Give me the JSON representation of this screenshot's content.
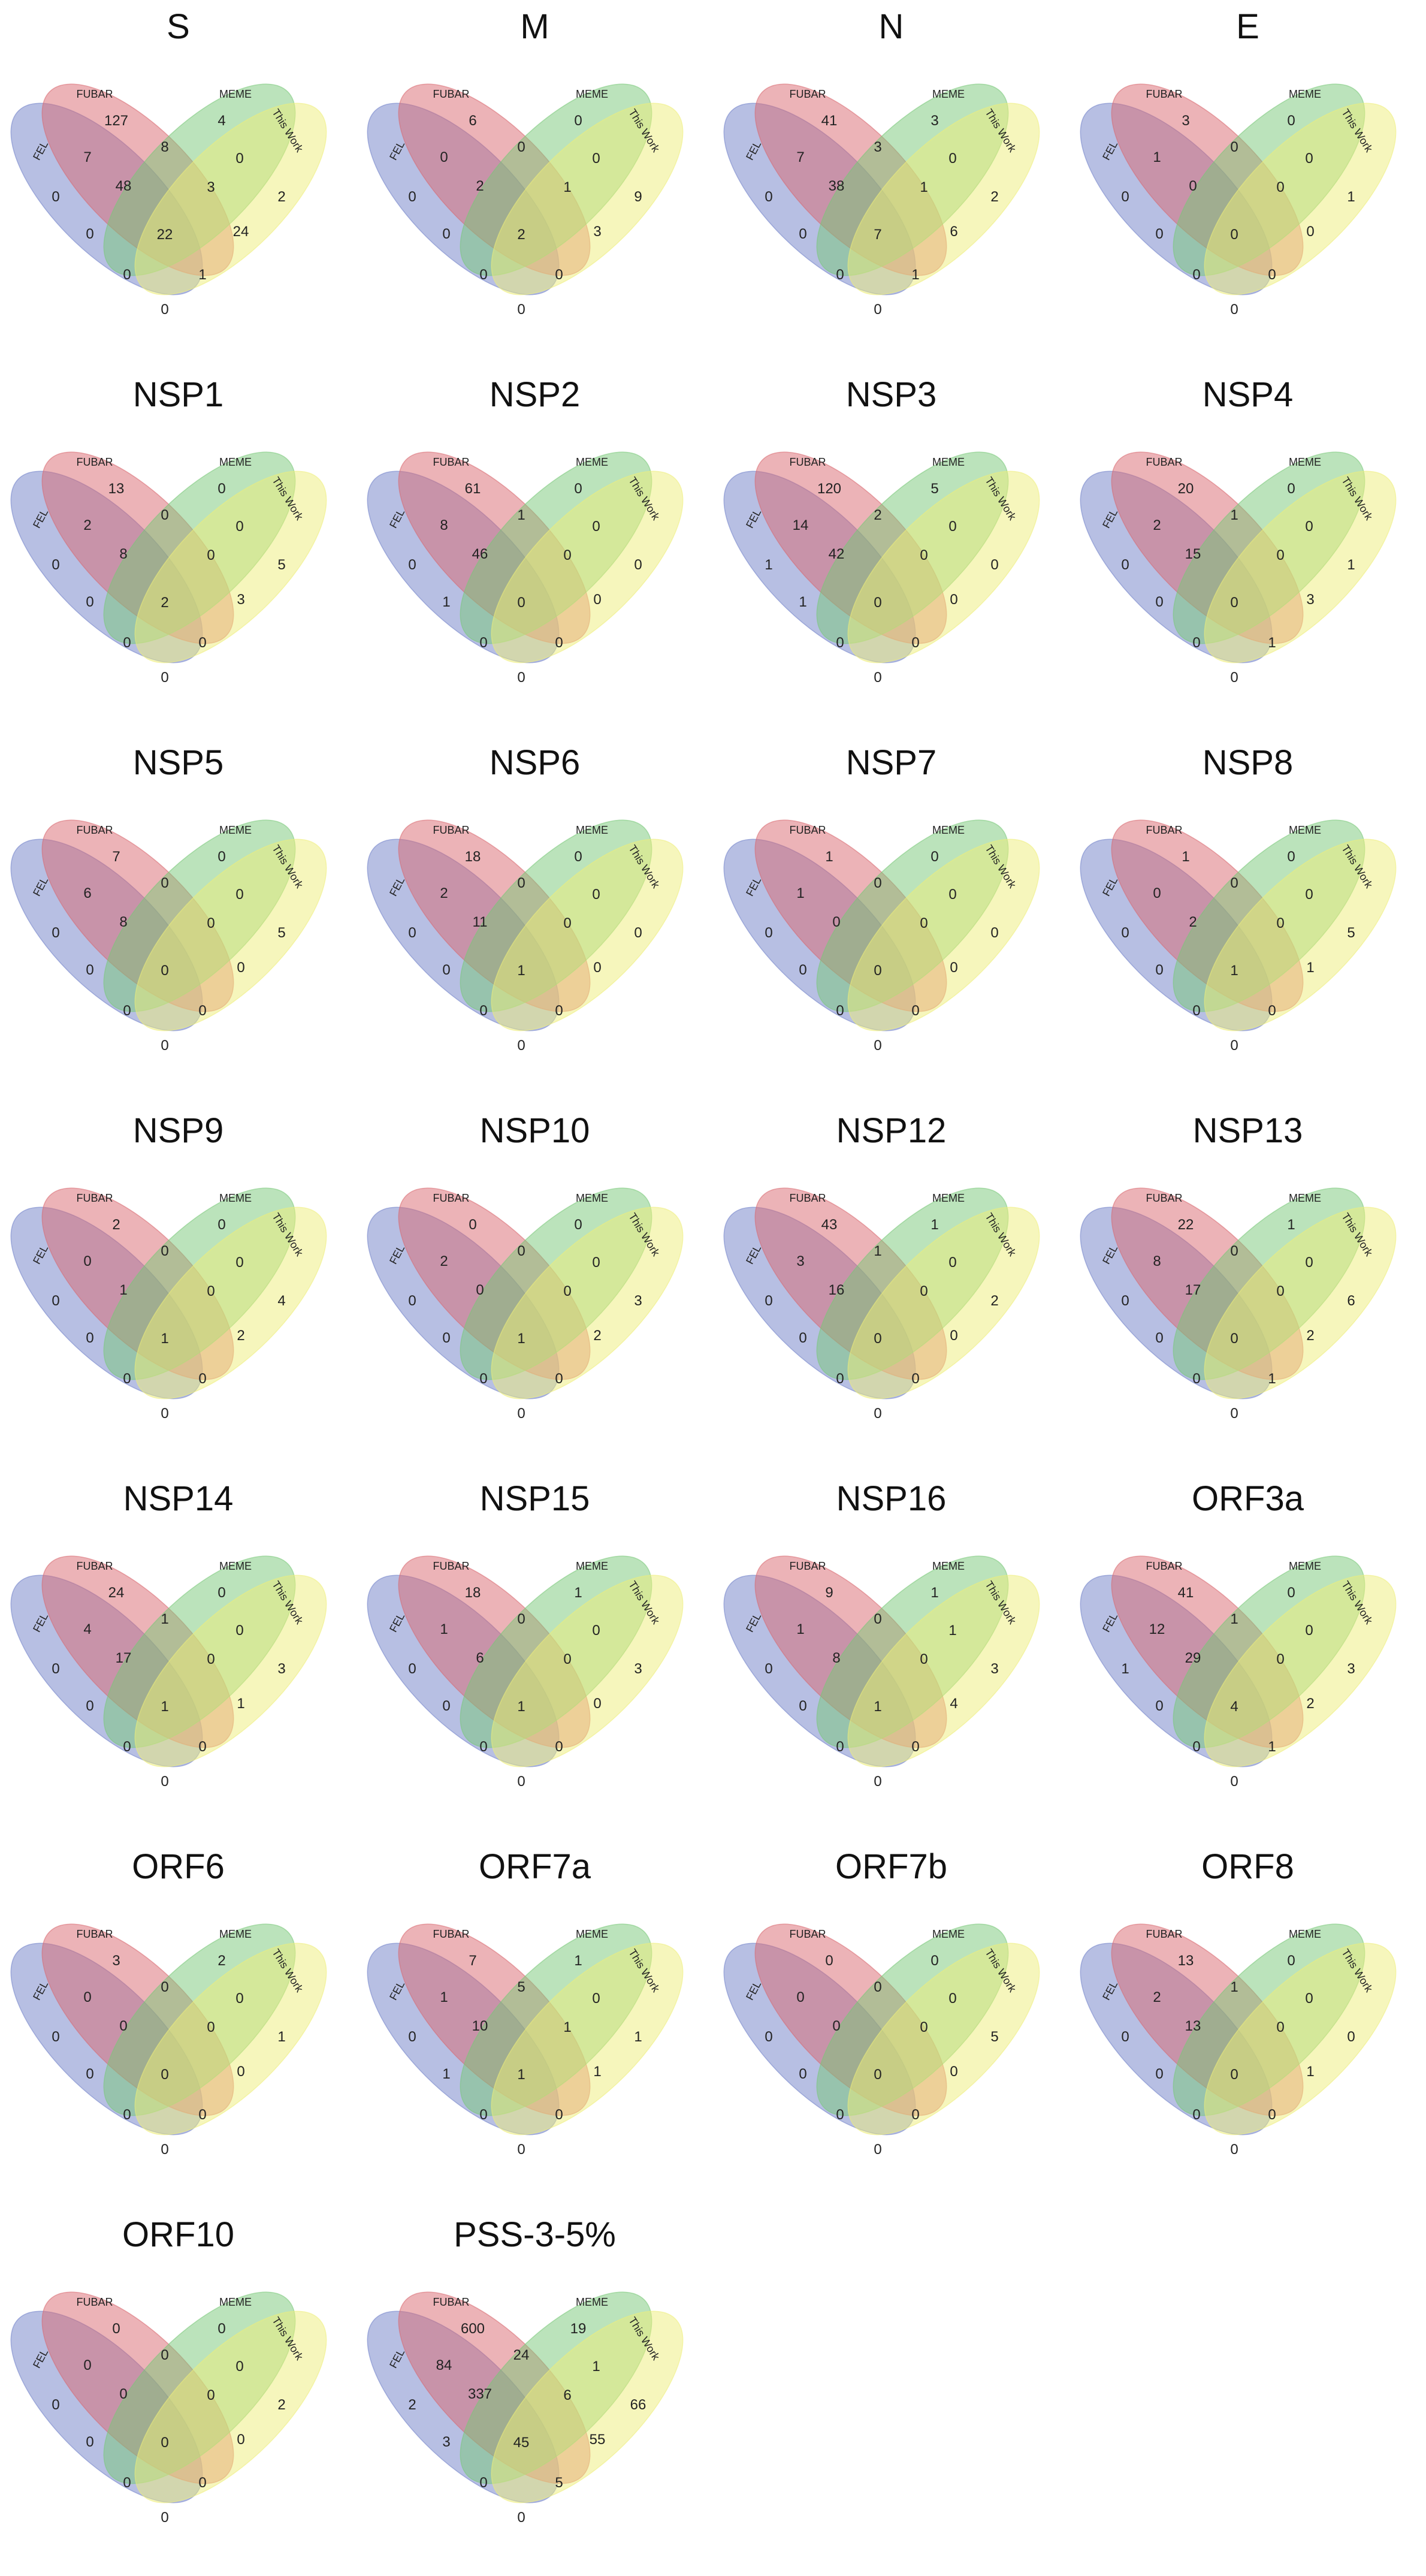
{
  "set_labels": {
    "fel": "FEL",
    "fubar": "FUBAR",
    "meme": "MEME",
    "this_work": "This Work"
  },
  "colors": {
    "fel": "#6f7fc8",
    "fubar": "#d9676f",
    "meme": "#78c878",
    "this_work": "#eeee7a"
  },
  "region_order": [
    "fubar_only",
    "meme_only",
    "fel_only",
    "this_work_only",
    "fel_fubar",
    "fubar_meme",
    "meme_this_work",
    "fel_fubar_meme",
    "fubar_meme_this_work",
    "fel_meme",
    "fel_fubar_meme_this_work",
    "fubar_this_work",
    "fel_meme_this_work",
    "fel_fubar_this_work",
    "fel_this_work"
  ],
  "panels": [
    {
      "title": "S",
      "values": {
        "fubar_only": "127",
        "meme_only": "4",
        "fel_only": "0",
        "this_work_only": "2",
        "fel_fubar": "7",
        "fubar_meme": "8",
        "meme_this_work": "0",
        "fel_fubar_meme": "48",
        "fubar_meme_this_work": "3",
        "fel_meme": "0",
        "fel_fubar_meme_this_work": "22",
        "fubar_this_work": "24",
        "fel_meme_this_work": "0",
        "fel_fubar_this_work": "1",
        "fel_this_work": "0"
      }
    },
    {
      "title": "M",
      "values": {
        "fubar_only": "6",
        "meme_only": "0",
        "fel_only": "0",
        "this_work_only": "9",
        "fel_fubar": "0",
        "fubar_meme": "0",
        "meme_this_work": "0",
        "fel_fubar_meme": "2",
        "fubar_meme_this_work": "1",
        "fel_meme": "0",
        "fel_fubar_meme_this_work": "2",
        "fubar_this_work": "3",
        "fel_meme_this_work": "0",
        "fel_fubar_this_work": "0",
        "fel_this_work": "0"
      }
    },
    {
      "title": "N",
      "values": {
        "fubar_only": "41",
        "meme_only": "3",
        "fel_only": "0",
        "this_work_only": "2",
        "fel_fubar": "7",
        "fubar_meme": "3",
        "meme_this_work": "0",
        "fel_fubar_meme": "38",
        "fubar_meme_this_work": "1",
        "fel_meme": "0",
        "fel_fubar_meme_this_work": "7",
        "fubar_this_work": "6",
        "fel_meme_this_work": "0",
        "fel_fubar_this_work": "1",
        "fel_this_work": "0"
      }
    },
    {
      "title": "E",
      "values": {
        "fubar_only": "3",
        "meme_only": "0",
        "fel_only": "0",
        "this_work_only": "1",
        "fel_fubar": "1",
        "fubar_meme": "0",
        "meme_this_work": "0",
        "fel_fubar_meme": "0",
        "fubar_meme_this_work": "0",
        "fel_meme": "0",
        "fel_fubar_meme_this_work": "0",
        "fubar_this_work": "0",
        "fel_meme_this_work": "0",
        "fel_fubar_this_work": "0",
        "fel_this_work": "0"
      }
    },
    {
      "title": "NSP1",
      "values": {
        "fubar_only": "13",
        "meme_only": "0",
        "fel_only": "0",
        "this_work_only": "5",
        "fel_fubar": "2",
        "fubar_meme": "0",
        "meme_this_work": "0",
        "fel_fubar_meme": "8",
        "fubar_meme_this_work": "0",
        "fel_meme": "0",
        "fel_fubar_meme_this_work": "2",
        "fubar_this_work": "3",
        "fel_meme_this_work": "0",
        "fel_fubar_this_work": "0",
        "fel_this_work": "0"
      }
    },
    {
      "title": "NSP2",
      "values": {
        "fubar_only": "61",
        "meme_only": "0",
        "fel_only": "0",
        "this_work_only": "0",
        "fel_fubar": "8",
        "fubar_meme": "1",
        "meme_this_work": "0",
        "fel_fubar_meme": "46",
        "fubar_meme_this_work": "0",
        "fel_meme": "1",
        "fel_fubar_meme_this_work": "0",
        "fubar_this_work": "0",
        "fel_meme_this_work": "0",
        "fel_fubar_this_work": "0",
        "fel_this_work": "0"
      }
    },
    {
      "title": "NSP3",
      "values": {
        "fubar_only": "120",
        "meme_only": "5",
        "fel_only": "1",
        "this_work_only": "0",
        "fel_fubar": "14",
        "fubar_meme": "2",
        "meme_this_work": "0",
        "fel_fubar_meme": "42",
        "fubar_meme_this_work": "0",
        "fel_meme": "1",
        "fel_fubar_meme_this_work": "0",
        "fubar_this_work": "0",
        "fel_meme_this_work": "0",
        "fel_fubar_this_work": "0",
        "fel_this_work": "0"
      }
    },
    {
      "title": "NSP4",
      "values": {
        "fubar_only": "20",
        "meme_only": "0",
        "fel_only": "0",
        "this_work_only": "1",
        "fel_fubar": "2",
        "fubar_meme": "1",
        "meme_this_work": "0",
        "fel_fubar_meme": "15",
        "fubar_meme_this_work": "0",
        "fel_meme": "0",
        "fel_fubar_meme_this_work": "0",
        "fubar_this_work": "3",
        "fel_meme_this_work": "0",
        "fel_fubar_this_work": "1",
        "fel_this_work": "0"
      }
    },
    {
      "title": "NSP5",
      "values": {
        "fubar_only": "7",
        "meme_only": "0",
        "fel_only": "0",
        "this_work_only": "5",
        "fel_fubar": "6",
        "fubar_meme": "0",
        "meme_this_work": "0",
        "fel_fubar_meme": "8",
        "fubar_meme_this_work": "0",
        "fel_meme": "0",
        "fel_fubar_meme_this_work": "0",
        "fubar_this_work": "0",
        "fel_meme_this_work": "0",
        "fel_fubar_this_work": "0",
        "fel_this_work": "0"
      }
    },
    {
      "title": "NSP6",
      "values": {
        "fubar_only": "18",
        "meme_only": "0",
        "fel_only": "0",
        "this_work_only": "0",
        "fel_fubar": "2",
        "fubar_meme": "0",
        "meme_this_work": "0",
        "fel_fubar_meme": "11",
        "fubar_meme_this_work": "0",
        "fel_meme": "0",
        "fel_fubar_meme_this_work": "1",
        "fubar_this_work": "0",
        "fel_meme_this_work": "0",
        "fel_fubar_this_work": "0",
        "fel_this_work": "0"
      }
    },
    {
      "title": "NSP7",
      "values": {
        "fubar_only": "1",
        "meme_only": "0",
        "fel_only": "0",
        "this_work_only": "0",
        "fel_fubar": "1",
        "fubar_meme": "0",
        "meme_this_work": "0",
        "fel_fubar_meme": "0",
        "fubar_meme_this_work": "0",
        "fel_meme": "0",
        "fel_fubar_meme_this_work": "0",
        "fubar_this_work": "0",
        "fel_meme_this_work": "0",
        "fel_fubar_this_work": "0",
        "fel_this_work": "0"
      }
    },
    {
      "title": "NSP8",
      "values": {
        "fubar_only": "1",
        "meme_only": "0",
        "fel_only": "0",
        "this_work_only": "5",
        "fel_fubar": "0",
        "fubar_meme": "0",
        "meme_this_work": "0",
        "fel_fubar_meme": "2",
        "fubar_meme_this_work": "0",
        "fel_meme": "0",
        "fel_fubar_meme_this_work": "1",
        "fubar_this_work": "1",
        "fel_meme_this_work": "0",
        "fel_fubar_this_work": "0",
        "fel_this_work": "0"
      }
    },
    {
      "title": "NSP9",
      "values": {
        "fubar_only": "2",
        "meme_only": "0",
        "fel_only": "0",
        "this_work_only": "4",
        "fel_fubar": "0",
        "fubar_meme": "0",
        "meme_this_work": "0",
        "fel_fubar_meme": "1",
        "fubar_meme_this_work": "0",
        "fel_meme": "0",
        "fel_fubar_meme_this_work": "1",
        "fubar_this_work": "2",
        "fel_meme_this_work": "0",
        "fel_fubar_this_work": "0",
        "fel_this_work": "0"
      }
    },
    {
      "title": "NSP10",
      "values": {
        "fubar_only": "0",
        "meme_only": "0",
        "fel_only": "0",
        "this_work_only": "3",
        "fel_fubar": "2",
        "fubar_meme": "0",
        "meme_this_work": "0",
        "fel_fubar_meme": "0",
        "fubar_meme_this_work": "0",
        "fel_meme": "0",
        "fel_fubar_meme_this_work": "1",
        "fubar_this_work": "2",
        "fel_meme_this_work": "0",
        "fel_fubar_this_work": "0",
        "fel_this_work": "0"
      }
    },
    {
      "title": "NSP12",
      "values": {
        "fubar_only": "43",
        "meme_only": "1",
        "fel_only": "0",
        "this_work_only": "2",
        "fel_fubar": "3",
        "fubar_meme": "1",
        "meme_this_work": "0",
        "fel_fubar_meme": "16",
        "fubar_meme_this_work": "0",
        "fel_meme": "0",
        "fel_fubar_meme_this_work": "0",
        "fubar_this_work": "0",
        "fel_meme_this_work": "0",
        "fel_fubar_this_work": "0",
        "fel_this_work": "0"
      }
    },
    {
      "title": "NSP13",
      "values": {
        "fubar_only": "22",
        "meme_only": "1",
        "fel_only": "0",
        "this_work_only": "6",
        "fel_fubar": "8",
        "fubar_meme": "0",
        "meme_this_work": "0",
        "fel_fubar_meme": "17",
        "fubar_meme_this_work": "0",
        "fel_meme": "0",
        "fel_fubar_meme_this_work": "0",
        "fubar_this_work": "2",
        "fel_meme_this_work": "0",
        "fel_fubar_this_work": "1",
        "fel_this_work": "0"
      }
    },
    {
      "title": "NSP14",
      "values": {
        "fubar_only": "24",
        "meme_only": "0",
        "fel_only": "0",
        "this_work_only": "3",
        "fel_fubar": "4",
        "fubar_meme": "1",
        "meme_this_work": "0",
        "fel_fubar_meme": "17",
        "fubar_meme_this_work": "0",
        "fel_meme": "0",
        "fel_fubar_meme_this_work": "1",
        "fubar_this_work": "1",
        "fel_meme_this_work": "0",
        "fel_fubar_this_work": "0",
        "fel_this_work": "0"
      }
    },
    {
      "title": "NSP15",
      "values": {
        "fubar_only": "18",
        "meme_only": "1",
        "fel_only": "0",
        "this_work_only": "3",
        "fel_fubar": "1",
        "fubar_meme": "0",
        "meme_this_work": "0",
        "fel_fubar_meme": "6",
        "fubar_meme_this_work": "0",
        "fel_meme": "0",
        "fel_fubar_meme_this_work": "1",
        "fubar_this_work": "0",
        "fel_meme_this_work": "0",
        "fel_fubar_this_work": "0",
        "fel_this_work": "0"
      }
    },
    {
      "title": "NSP16",
      "values": {
        "fubar_only": "9",
        "meme_only": "1",
        "fel_only": "0",
        "this_work_only": "3",
        "fel_fubar": "1",
        "fubar_meme": "0",
        "meme_this_work": "1",
        "fel_fubar_meme": "8",
        "fubar_meme_this_work": "0",
        "fel_meme": "0",
        "fel_fubar_meme_this_work": "1",
        "fubar_this_work": "4",
        "fel_meme_this_work": "0",
        "fel_fubar_this_work": "0",
        "fel_this_work": "0"
      }
    },
    {
      "title": "ORF3a",
      "values": {
        "fubar_only": "41",
        "meme_only": "0",
        "fel_only": "1",
        "this_work_only": "3",
        "fel_fubar": "12",
        "fubar_meme": "1",
        "meme_this_work": "0",
        "fel_fubar_meme": "29",
        "fubar_meme_this_work": "0",
        "fel_meme": "0",
        "fel_fubar_meme_this_work": "4",
        "fubar_this_work": "2",
        "fel_meme_this_work": "0",
        "fel_fubar_this_work": "1",
        "fel_this_work": "0"
      }
    },
    {
      "title": "ORF6",
      "values": {
        "fubar_only": "3",
        "meme_only": "2",
        "fel_only": "0",
        "this_work_only": "1",
        "fel_fubar": "0",
        "fubar_meme": "0",
        "meme_this_work": "0",
        "fel_fubar_meme": "0",
        "fubar_meme_this_work": "0",
        "fel_meme": "0",
        "fel_fubar_meme_this_work": "0",
        "fubar_this_work": "0",
        "fel_meme_this_work": "0",
        "fel_fubar_this_work": "0",
        "fel_this_work": "0"
      }
    },
    {
      "title": "ORF7a",
      "values": {
        "fubar_only": "7",
        "meme_only": "1",
        "fel_only": "0",
        "this_work_only": "1",
        "fel_fubar": "1",
        "fubar_meme": "5",
        "meme_this_work": "0",
        "fel_fubar_meme": "10",
        "fubar_meme_this_work": "1",
        "fel_meme": "1",
        "fel_fubar_meme_this_work": "1",
        "fubar_this_work": "1",
        "fel_meme_this_work": "0",
        "fel_fubar_this_work": "0",
        "fel_this_work": "0"
      }
    },
    {
      "title": "ORF7b",
      "values": {
        "fubar_only": "0",
        "meme_only": "0",
        "fel_only": "0",
        "this_work_only": "5",
        "fel_fubar": "0",
        "fubar_meme": "0",
        "meme_this_work": "0",
        "fel_fubar_meme": "0",
        "fubar_meme_this_work": "0",
        "fel_meme": "0",
        "fel_fubar_meme_this_work": "0",
        "fubar_this_work": "0",
        "fel_meme_this_work": "0",
        "fel_fubar_this_work": "0",
        "fel_this_work": "0"
      }
    },
    {
      "title": "ORF8",
      "values": {
        "fubar_only": "13",
        "meme_only": "0",
        "fel_only": "0",
        "this_work_only": "0",
        "fel_fubar": "2",
        "fubar_meme": "1",
        "meme_this_work": "0",
        "fel_fubar_meme": "13",
        "fubar_meme_this_work": "0",
        "fel_meme": "0",
        "fel_fubar_meme_this_work": "0",
        "fubar_this_work": "1",
        "fel_meme_this_work": "0",
        "fel_fubar_this_work": "0",
        "fel_this_work": "0"
      }
    },
    {
      "title": "ORF10",
      "values": {
        "fubar_only": "0",
        "meme_only": "0",
        "fel_only": "0",
        "this_work_only": "2",
        "fel_fubar": "0",
        "fubar_meme": "0",
        "meme_this_work": "0",
        "fel_fubar_meme": "0",
        "fubar_meme_this_work": "0",
        "fel_meme": "0",
        "fel_fubar_meme_this_work": "0",
        "fubar_this_work": "0",
        "fel_meme_this_work": "0",
        "fel_fubar_this_work": "0",
        "fel_this_work": "0"
      }
    },
    {
      "title": "PSS-3-5%",
      "values": {
        "fubar_only": "600",
        "meme_only": "19",
        "fel_only": "2",
        "this_work_only": "66",
        "fel_fubar": "84",
        "fubar_meme": "24",
        "meme_this_work": "1",
        "fel_fubar_meme": "337",
        "fubar_meme_this_work": "6",
        "fel_meme": "3",
        "fel_fubar_meme_this_work": "45",
        "fubar_this_work": "55",
        "fel_meme_this_work": "0",
        "fel_fubar_this_work": "5",
        "fel_this_work": "0"
      }
    }
  ]
}
